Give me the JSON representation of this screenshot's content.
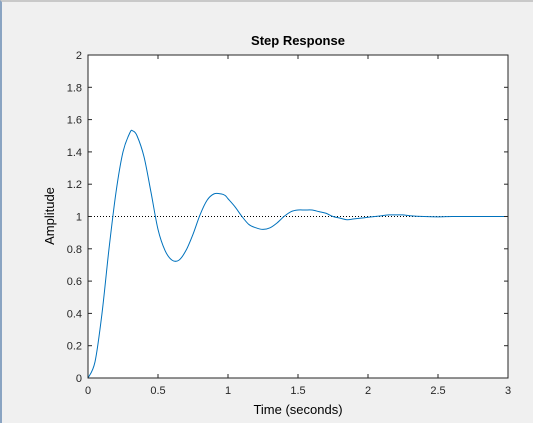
{
  "chart_data": {
    "type": "line",
    "title": "Step Response",
    "xlabel": "Time (seconds)",
    "ylabel": "Amplitude",
    "xlim": [
      0,
      3
    ],
    "ylim": [
      0,
      2
    ],
    "xticks": [
      0,
      0.5,
      1,
      1.5,
      2,
      2.5,
      3
    ],
    "xtick_labels": [
      "0",
      "0.5",
      "1",
      "1.5",
      "2",
      "2.5",
      "3"
    ],
    "yticks": [
      0,
      0.2,
      0.4,
      0.6,
      0.8,
      1,
      1.2,
      1.4,
      1.6,
      1.8,
      2
    ],
    "ytick_labels": [
      "0",
      "0.2",
      "0.4",
      "0.6",
      "0.8",
      "1",
      "1.2",
      "1.4",
      "1.6",
      "1.8",
      "2"
    ],
    "grid": false,
    "reference_line": {
      "y": 1,
      "style": "dotted",
      "color": "#000000"
    },
    "series": [
      {
        "color": "#0072bd",
        "x": [
          0,
          0.05,
          0.1,
          0.15,
          0.2,
          0.25,
          0.3,
          0.32,
          0.35,
          0.4,
          0.45,
          0.5,
          0.55,
          0.6,
          0.65,
          0.7,
          0.75,
          0.8,
          0.85,
          0.9,
          0.95,
          0.98,
          1.0,
          1.05,
          1.1,
          1.15,
          1.2,
          1.25,
          1.3,
          1.35,
          1.4,
          1.45,
          1.5,
          1.55,
          1.6,
          1.65,
          1.7,
          1.75,
          1.8,
          1.85,
          1.9,
          1.95,
          2.0,
          2.05,
          2.1,
          2.15,
          2.2,
          2.25,
          2.3,
          2.4,
          2.5,
          2.6,
          2.7,
          2.8,
          2.9,
          3.0
        ],
        "y": [
          0,
          0.1,
          0.4,
          0.8,
          1.15,
          1.4,
          1.52,
          1.53,
          1.5,
          1.37,
          1.15,
          0.92,
          0.79,
          0.73,
          0.73,
          0.79,
          0.89,
          1.01,
          1.1,
          1.14,
          1.14,
          1.13,
          1.11,
          1.06,
          1.0,
          0.95,
          0.93,
          0.92,
          0.93,
          0.96,
          1.0,
          1.03,
          1.04,
          1.04,
          1.04,
          1.03,
          1.02,
          1.0,
          0.99,
          0.98,
          0.985,
          0.99,
          0.995,
          1.0,
          1.005,
          1.01,
          1.01,
          1.01,
          1.005,
          1.0,
          0.998,
          1.0,
          1.0,
          1.0,
          1.0,
          1.0
        ]
      }
    ]
  }
}
